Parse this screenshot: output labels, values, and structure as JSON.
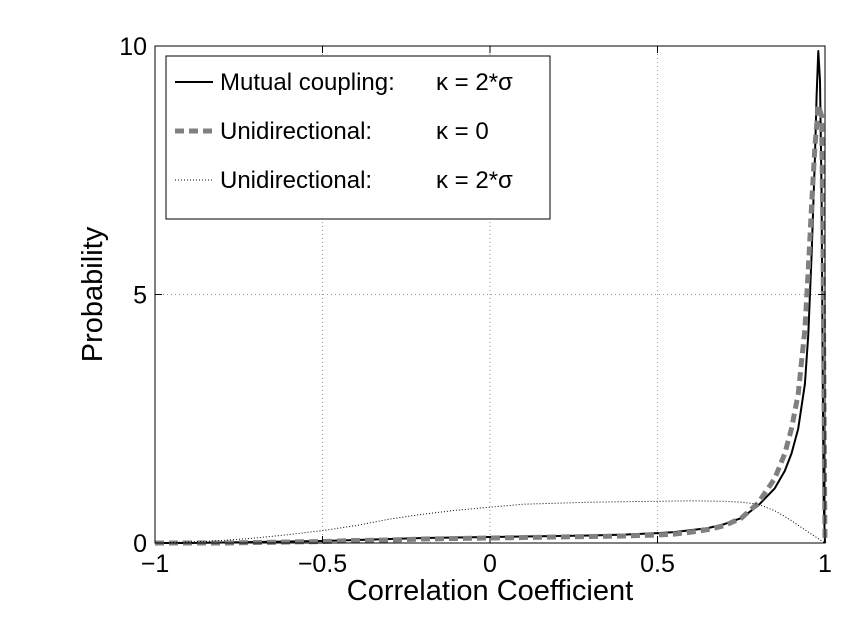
{
  "chart_data": {
    "type": "line",
    "title": "",
    "xlabel": "Correlation Coefficient",
    "ylabel": "Probability",
    "xlim": [
      -1,
      1
    ],
    "ylim": [
      0,
      10
    ],
    "grid": true,
    "legend_position": "top-left",
    "xticks": [
      -1,
      -0.5,
      0,
      0.5,
      1
    ],
    "xtick_labels": [
      "−1",
      "−0.5",
      "0",
      "0.5",
      "1"
    ],
    "yticks": [
      0,
      5,
      10
    ],
    "ytick_labels": [
      "0",
      "5",
      "10"
    ],
    "series": [
      {
        "name": "Mutual coupling:",
        "param": "κ = 2*σ",
        "style": "solid",
        "color": "#000000",
        "x": [
          -1.0,
          -0.9,
          -0.8,
          -0.7,
          -0.6,
          -0.5,
          -0.4,
          -0.3,
          -0.2,
          -0.1,
          0.0,
          0.1,
          0.2,
          0.3,
          0.4,
          0.5,
          0.55,
          0.6,
          0.65,
          0.7,
          0.75,
          0.8,
          0.85,
          0.88,
          0.9,
          0.92,
          0.94,
          0.95,
          0.96,
          0.97,
          0.975,
          0.98,
          0.985,
          0.99,
          0.993,
          0.996,
          1.0
        ],
        "y": [
          0.0,
          0.0,
          0.01,
          0.02,
          0.03,
          0.04,
          0.06,
          0.08,
          0.1,
          0.11,
          0.12,
          0.13,
          0.14,
          0.15,
          0.17,
          0.2,
          0.22,
          0.26,
          0.3,
          0.38,
          0.5,
          0.75,
          1.1,
          1.45,
          1.8,
          2.3,
          3.2,
          4.2,
          5.8,
          7.8,
          9.0,
          9.9,
          9.3,
          7.0,
          3.5,
          0.8,
          0.0
        ]
      },
      {
        "name": "Unidirectional:",
        "param": "κ = 0",
        "style": "dashed",
        "color": "#808080",
        "x": [
          -1.0,
          -0.9,
          -0.8,
          -0.7,
          -0.6,
          -0.5,
          -0.4,
          -0.3,
          -0.2,
          -0.1,
          0.0,
          0.1,
          0.2,
          0.3,
          0.4,
          0.5,
          0.55,
          0.6,
          0.65,
          0.7,
          0.75,
          0.8,
          0.85,
          0.88,
          0.9,
          0.92,
          0.94,
          0.95,
          0.96,
          0.97,
          0.98,
          0.99,
          0.994,
          0.998,
          1.0
        ],
        "y": [
          0.0,
          0.0,
          0.0,
          0.01,
          0.02,
          0.03,
          0.05,
          0.06,
          0.08,
          0.09,
          0.1,
          0.11,
          0.12,
          0.13,
          0.14,
          0.16,
          0.18,
          0.22,
          0.27,
          0.35,
          0.5,
          0.8,
          1.3,
          1.8,
          2.3,
          3.0,
          4.3,
          5.5,
          6.8,
          8.0,
          8.8,
          8.6,
          6.0,
          2.0,
          0.0
        ]
      },
      {
        "name": "Unidirectional:",
        "param": "κ = 2*σ",
        "style": "dotted",
        "color": "#000000",
        "x": [
          -1.0,
          -0.9,
          -0.8,
          -0.7,
          -0.6,
          -0.5,
          -0.4,
          -0.3,
          -0.2,
          -0.1,
          0.0,
          0.1,
          0.2,
          0.3,
          0.4,
          0.5,
          0.6,
          0.7,
          0.75,
          0.8,
          0.85,
          0.9,
          0.95,
          1.0
        ],
        "y": [
          0.0,
          0.02,
          0.05,
          0.1,
          0.17,
          0.25,
          0.35,
          0.48,
          0.58,
          0.66,
          0.72,
          0.78,
          0.8,
          0.82,
          0.83,
          0.84,
          0.85,
          0.84,
          0.82,
          0.78,
          0.65,
          0.45,
          0.22,
          0.0
        ]
      }
    ]
  }
}
